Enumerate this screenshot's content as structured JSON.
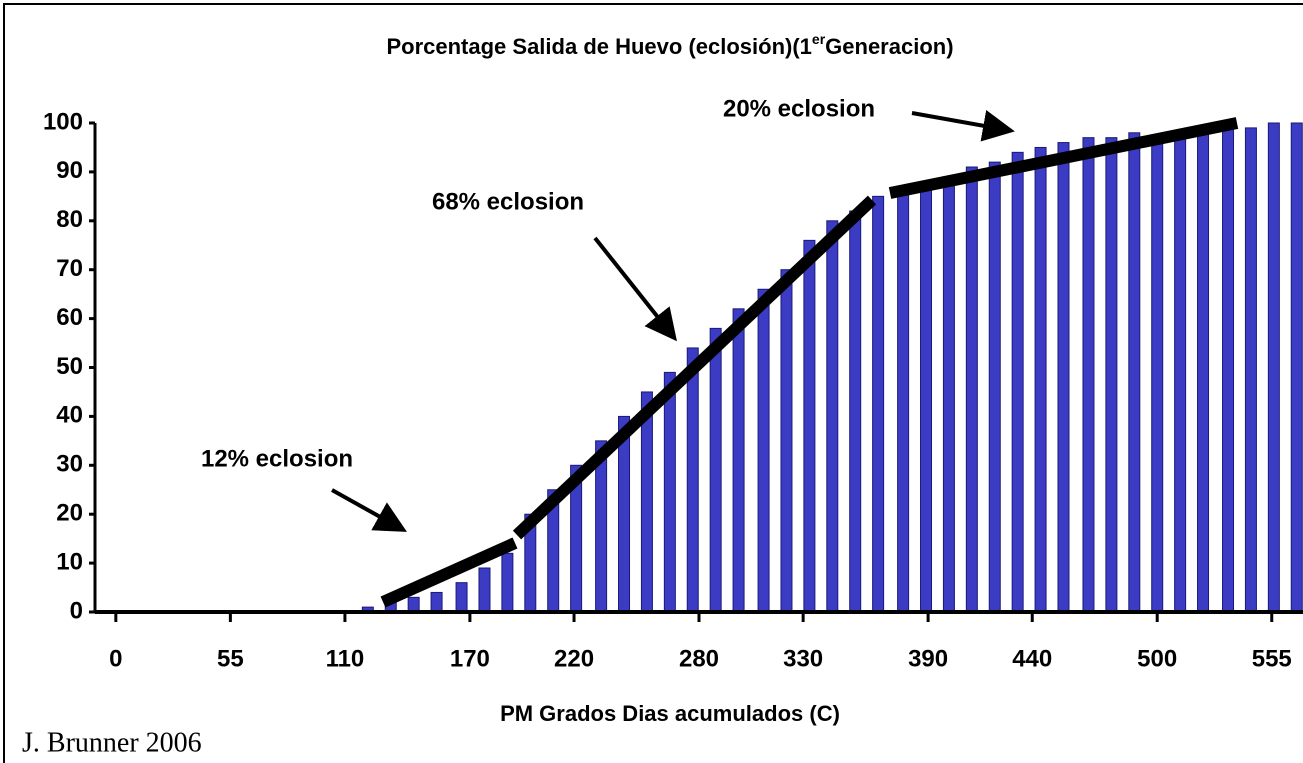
{
  "chart_data": {
    "type": "bar",
    "title": "Porcentage  Salida de Huevo (eclosión)(1",
    "title_superscript": "er",
    "title_end": "Generacion)",
    "x_label": "PM Grados Dias acumulados (C)",
    "credit": "J. Brunner 2006",
    "annotations": [
      "12% eclosion",
      "68% eclosion",
      "20% eclosion"
    ],
    "x": [
      121,
      132,
      143,
      154,
      166,
      177,
      188,
      199,
      210,
      221,
      233,
      244,
      255,
      266,
      277,
      288,
      299,
      311,
      322,
      333,
      344,
      355,
      366,
      378,
      389,
      400,
      411,
      422,
      433,
      444,
      455,
      467,
      478,
      489,
      500,
      511,
      522,
      534,
      545,
      556,
      567
    ],
    "values": [
      1,
      2,
      3,
      4,
      6,
      9,
      12,
      20,
      25,
      30,
      35,
      40,
      45,
      49,
      54,
      58,
      62,
      66,
      70,
      76,
      80,
      82,
      85,
      87,
      88,
      89,
      91,
      92,
      94,
      95,
      96,
      97,
      97,
      98,
      97,
      98,
      99,
      100,
      99,
      100,
      100
    ],
    "color": "#3b3bc4",
    "xlim": [
      -10,
      570
    ],
    "xticks": [
      0,
      55,
      110,
      170,
      220,
      280,
      330,
      390,
      440,
      500,
      555
    ],
    "ylim": [
      0,
      100
    ],
    "yticks": [
      0,
      10,
      20,
      30,
      40,
      50,
      60,
      70,
      80,
      90,
      100
    ]
  }
}
